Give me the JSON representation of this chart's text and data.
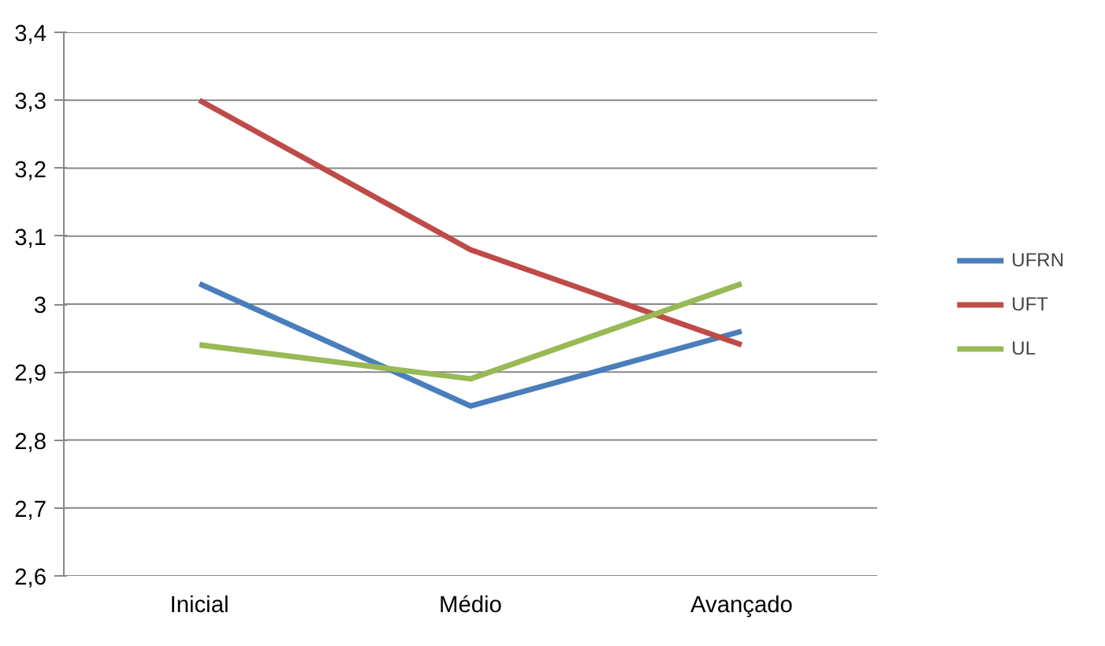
{
  "chart_data": {
    "type": "line",
    "categories": [
      "Inicial",
      "Médio",
      "Avançado"
    ],
    "series": [
      {
        "name": "UFRN",
        "color": "#4a7ebb",
        "values": [
          3.03,
          2.85,
          2.96
        ]
      },
      {
        "name": "UFT",
        "color": "#be4b48",
        "values": [
          3.3,
          3.08,
          2.94
        ]
      },
      {
        "name": "UL",
        "color": "#98b954",
        "values": [
          2.94,
          2.89,
          3.03
        ]
      }
    ],
    "ylim": [
      2.6,
      3.4
    ],
    "yticks": [
      {
        "value": 2.6,
        "label": "2,6"
      },
      {
        "value": 2.7,
        "label": "2,7"
      },
      {
        "value": 2.8,
        "label": "2,8"
      },
      {
        "value": 2.9,
        "label": "2,9"
      },
      {
        "value": 3,
        "label": "3"
      },
      {
        "value": 3.1,
        "label": "3,1"
      },
      {
        "value": 3.2,
        "label": "3,2"
      },
      {
        "value": 3.3,
        "label": "3,3"
      },
      {
        "value": 3.4,
        "label": "3,4"
      }
    ],
    "grid": "y",
    "legend": "right",
    "marker": "none",
    "line_style": "solid"
  }
}
